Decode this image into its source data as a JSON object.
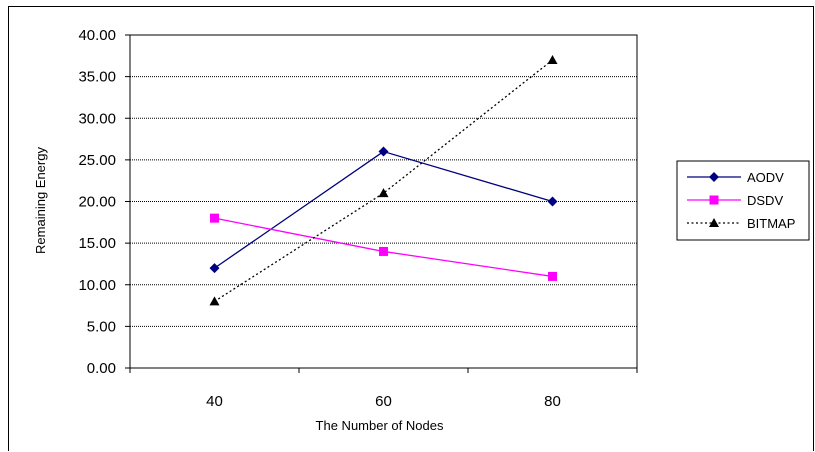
{
  "chart_data": {
    "type": "line",
    "title": "",
    "xlabel": "The Number of Nodes",
    "ylabel": "Remaining Energy",
    "categories": [
      "40",
      "60",
      "80"
    ],
    "ylim": [
      0,
      40
    ],
    "ytick_labels": [
      "0.00",
      "5.00",
      "10.00",
      "15.00",
      "20.00",
      "25.00",
      "30.00",
      "35.00",
      "40.00"
    ],
    "grid": true,
    "legend_position": "right",
    "series": [
      {
        "name": "AODV",
        "values": [
          12,
          26,
          20
        ],
        "color": "#000080",
        "marker": "diamond",
        "line": "solid"
      },
      {
        "name": "DSDV",
        "values": [
          18,
          14,
          11
        ],
        "color": "#ff00ff",
        "marker": "square",
        "line": "solid"
      },
      {
        "name": "BITMAP",
        "values": [
          8,
          21,
          37
        ],
        "color": "#000000",
        "marker": "triangle",
        "line": "dotted"
      }
    ]
  }
}
